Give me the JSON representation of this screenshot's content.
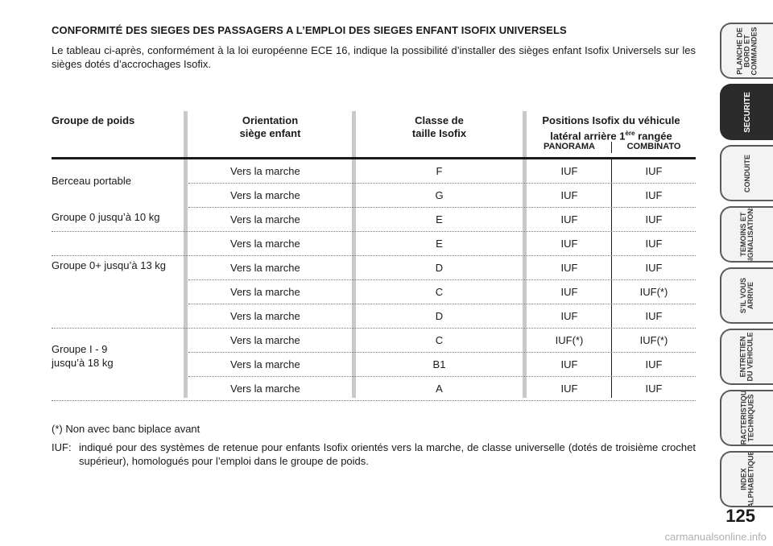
{
  "title": "CONFORMITÉ DES SIEGES DES PASSAGERS A L’EMPLOI DES SIEGES ENFANT ISOFIX UNIVERSELS",
  "intro": "Le tableau ci-après, conformément à la loi européenne ECE 16, indique la possibilité d’installer des sièges enfant Isofix Universels sur les sièges dotés d’accrochages Isofix.",
  "table": {
    "headers": {
      "groupe": "Groupe de poids",
      "orientation_1": "Orientation",
      "orientation_2": "siège enfant",
      "classe_1": "Classe de",
      "classe_2": "taille Isofix",
      "positions_1": "Positions Isofix du véhicule",
      "positions_2a": "latéral arrière 1",
      "positions_2sup": "ère",
      "positions_2b": " rangée",
      "sub_panorama": "PANORAMA",
      "sub_combinato": "COMBINATO"
    },
    "groups": [
      "Berceau portable",
      "Groupe 0 jusqu’à 10 kg",
      "Groupe 0+ jusqu’à 13 kg",
      "Groupe I - 9",
      "jusqu’à 18 kg"
    ],
    "rows": [
      {
        "orientation": "Vers la marche",
        "classe": "F",
        "panorama": "IUF",
        "combinato": "IUF"
      },
      {
        "orientation": "Vers la marche",
        "classe": "G",
        "panorama": "IUF",
        "combinato": "IUF"
      },
      {
        "orientation": "Vers la marche",
        "classe": "E",
        "panorama": "IUF",
        "combinato": "IUF"
      },
      {
        "orientation": "Vers la marche",
        "classe": "E",
        "panorama": "IUF",
        "combinato": "IUF"
      },
      {
        "orientation": "Vers la marche",
        "classe": "D",
        "panorama": "IUF",
        "combinato": "IUF"
      },
      {
        "orientation": "Vers la marche",
        "classe": "C",
        "panorama": "IUF",
        "combinato": "IUF(*)"
      },
      {
        "orientation": "Vers la marche",
        "classe": "D",
        "panorama": "IUF",
        "combinato": "IUF"
      },
      {
        "orientation": "Vers la marche",
        "classe": "C",
        "panorama": "IUF(*)",
        "combinato": "IUF(*)"
      },
      {
        "orientation": "Vers la marche",
        "classe": "B1",
        "panorama": "IUF",
        "combinato": "IUF"
      },
      {
        "orientation": "Vers la marche",
        "classe": "A",
        "panorama": "IUF",
        "combinato": "IUF"
      }
    ]
  },
  "notes": {
    "note1": "(*) Non avec banc biplace avant",
    "note2_key": "IUF:",
    "note2_text": "indiqué pour des systèmes de retenue pour enfants Isofix orientés vers la marche, de classe universelle (dotés de troisième crochet supérieur), homologués pour l’emploi dans le groupe de poids."
  },
  "tabs": [
    {
      "label": "PLANCHE DE\nBORD ET\nCOMMANDES",
      "active": false
    },
    {
      "label": "SECURITE",
      "active": true
    },
    {
      "label": "CONDUITE",
      "active": false
    },
    {
      "label": "TEMOINS ET\nSIGNALISATIONS",
      "active": false
    },
    {
      "label": "S’IL VOUS\nARRIVE",
      "active": false
    },
    {
      "label": "ENTRETIEN\nDU VEHICULE",
      "active": false
    },
    {
      "label": "CARACTERISTIQUES\nTECHNIQUES",
      "active": false
    },
    {
      "label": "INDEX\nALPHABETIQUE",
      "active": false
    }
  ],
  "page_number": "125",
  "watermark": "carmanualsonline.info"
}
